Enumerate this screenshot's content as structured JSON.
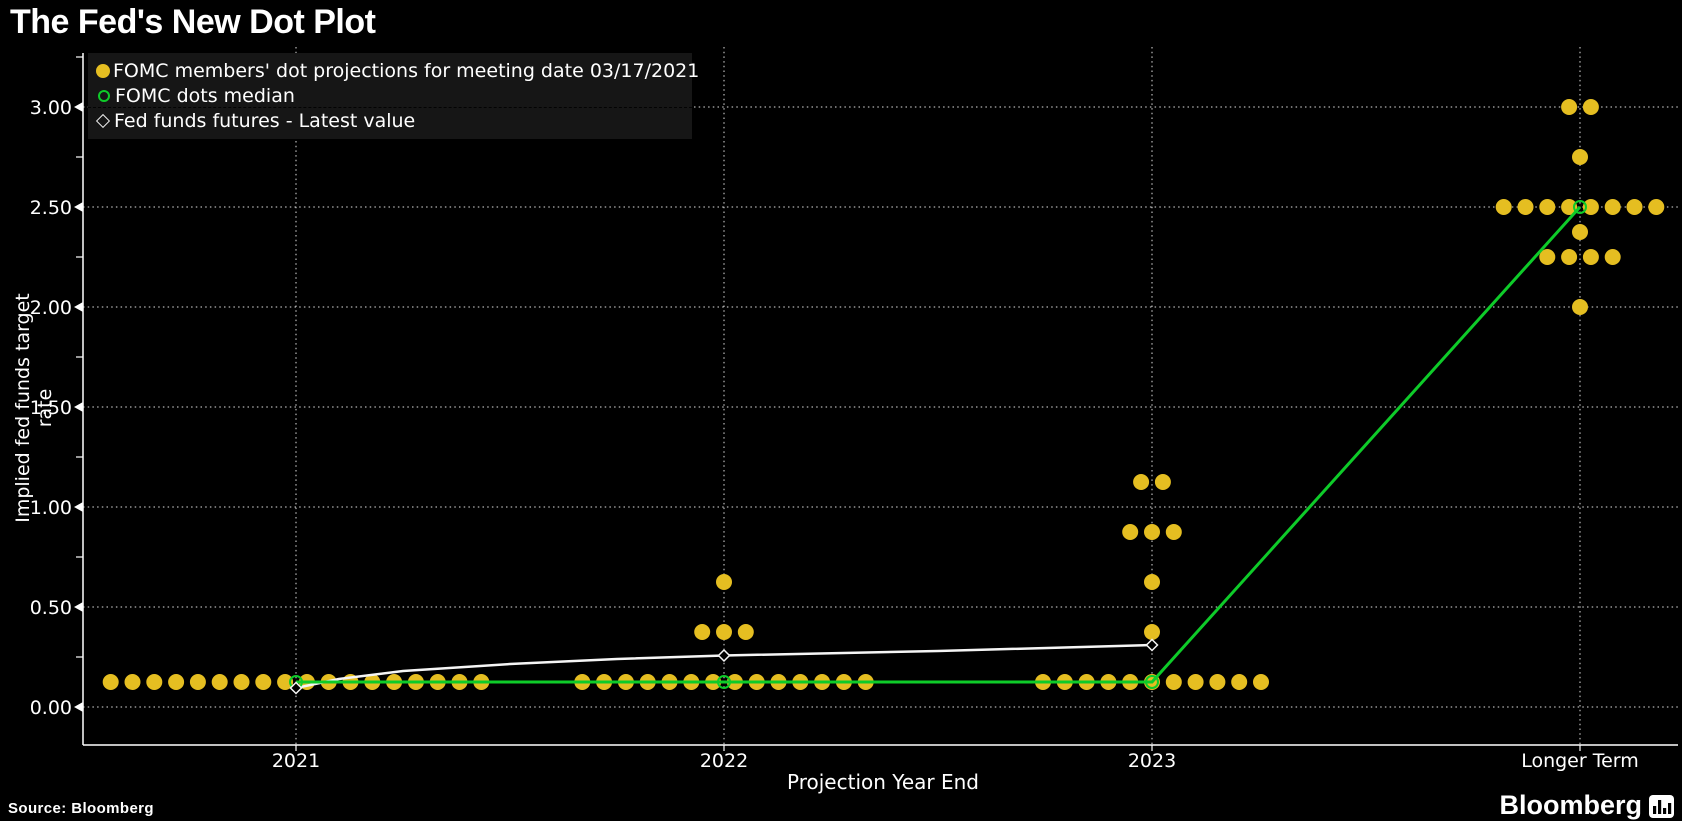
{
  "title": "The Fed's New Dot Plot",
  "source_label": "Source: Bloomberg",
  "brand": "Bloomberg",
  "chart_data": {
    "type": "scatter",
    "title": "The Fed's New Dot Plot",
    "xlabel": "Projection Year End",
    "ylabel": "Implied fed funds target rate",
    "categories": [
      "2021",
      "2022",
      "2023",
      "Longer Term"
    ],
    "y_ticks": [
      0,
      0.5,
      1,
      1.5,
      2,
      2.5,
      3
    ],
    "y_tick_labels": [
      "0.00",
      "0.50",
      "1.00",
      "1.50",
      "2.00",
      "2.50",
      "3.00"
    ],
    "y_minor_ticks": [
      0.25,
      0.75,
      1.25,
      1.75,
      2.25,
      2.75,
      3.25
    ],
    "ylim": [
      -0.19,
      3.3
    ],
    "grid": true,
    "legend_position": "upper-left",
    "legend": [
      {
        "label": "FOMC members' dot projections for meeting date 03/17/2021",
        "marker": "filled-circle",
        "color": "#e5be21"
      },
      {
        "label": "FOMC dots median",
        "marker": "open-circle",
        "color": "#0ecb29"
      },
      {
        "label": "Fed funds futures - Latest value",
        "marker": "open-diamond",
        "color": "#ffffff"
      }
    ],
    "dot_projections": {
      "2021": [
        {
          "rate": 0.125,
          "count": 18
        }
      ],
      "2022": [
        {
          "rate": 0.125,
          "count": 14
        },
        {
          "rate": 0.375,
          "count": 3
        },
        {
          "rate": 0.625,
          "count": 1
        }
      ],
      "2023": [
        {
          "rate": 0.125,
          "count": 11
        },
        {
          "rate": 0.375,
          "count": 1
        },
        {
          "rate": 0.625,
          "count": 1
        },
        {
          "rate": 0.875,
          "count": 3
        },
        {
          "rate": 1.125,
          "count": 2
        }
      ],
      "Longer Term": [
        {
          "rate": 2.0,
          "count": 1
        },
        {
          "rate": 2.25,
          "count": 4
        },
        {
          "rate": 2.375,
          "count": 1
        },
        {
          "rate": 2.5,
          "count": 8
        },
        {
          "rate": 2.75,
          "count": 1
        },
        {
          "rate": 3.0,
          "count": 2
        }
      ]
    },
    "median_series": {
      "name": "FOMC dots median",
      "x": [
        0,
        1,
        2,
        3
      ],
      "values": [
        0.125,
        0.125,
        0.125,
        2.5
      ]
    },
    "futures_series": {
      "name": "Fed funds futures - Latest value",
      "points": [
        [
          0,
          0.095
        ],
        [
          0.1,
          0.14
        ],
        [
          0.25,
          0.18
        ],
        [
          0.5,
          0.215
        ],
        [
          0.75,
          0.24
        ],
        [
          1,
          0.2575
        ],
        [
          1.5,
          0.28
        ],
        [
          2,
          0.31
        ]
      ],
      "markers": [
        [
          0,
          0.095
        ],
        [
          1,
          0.2575
        ],
        [
          2,
          0.31
        ]
      ]
    },
    "colors": {
      "dots": "#e5be21",
      "median": "#0ecb29",
      "futures": "#f5f5f5",
      "background": "#000000",
      "grid": "#e0e0e0",
      "text": "#ffffff",
      "legend_bg": "#161616"
    }
  }
}
